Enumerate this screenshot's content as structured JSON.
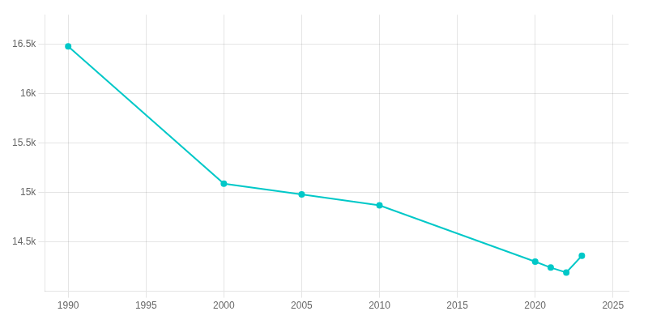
{
  "chart_data": {
    "type": "line",
    "x": [
      1990,
      2000,
      2005,
      2010,
      2020,
      2021,
      2022,
      2023
    ],
    "values": [
      16480,
      15090,
      14980,
      14870,
      14300,
      14240,
      14190,
      14360
    ],
    "color": "#00c8c8",
    "marker": "circle",
    "xlim": [
      1988.5,
      2026
    ],
    "ylim": [
      14000,
      16800
    ],
    "xticks": [
      1990,
      1995,
      2000,
      2005,
      2010,
      2015,
      2020,
      2025
    ],
    "yticks": [
      {
        "value": 14500,
        "label": "14.5k"
      },
      {
        "value": 15000,
        "label": "15k"
      },
      {
        "value": 15500,
        "label": "15.5k"
      },
      {
        "value": 16000,
        "label": "16k"
      },
      {
        "value": 16500,
        "label": "16.5k"
      }
    ],
    "grid": true
  }
}
